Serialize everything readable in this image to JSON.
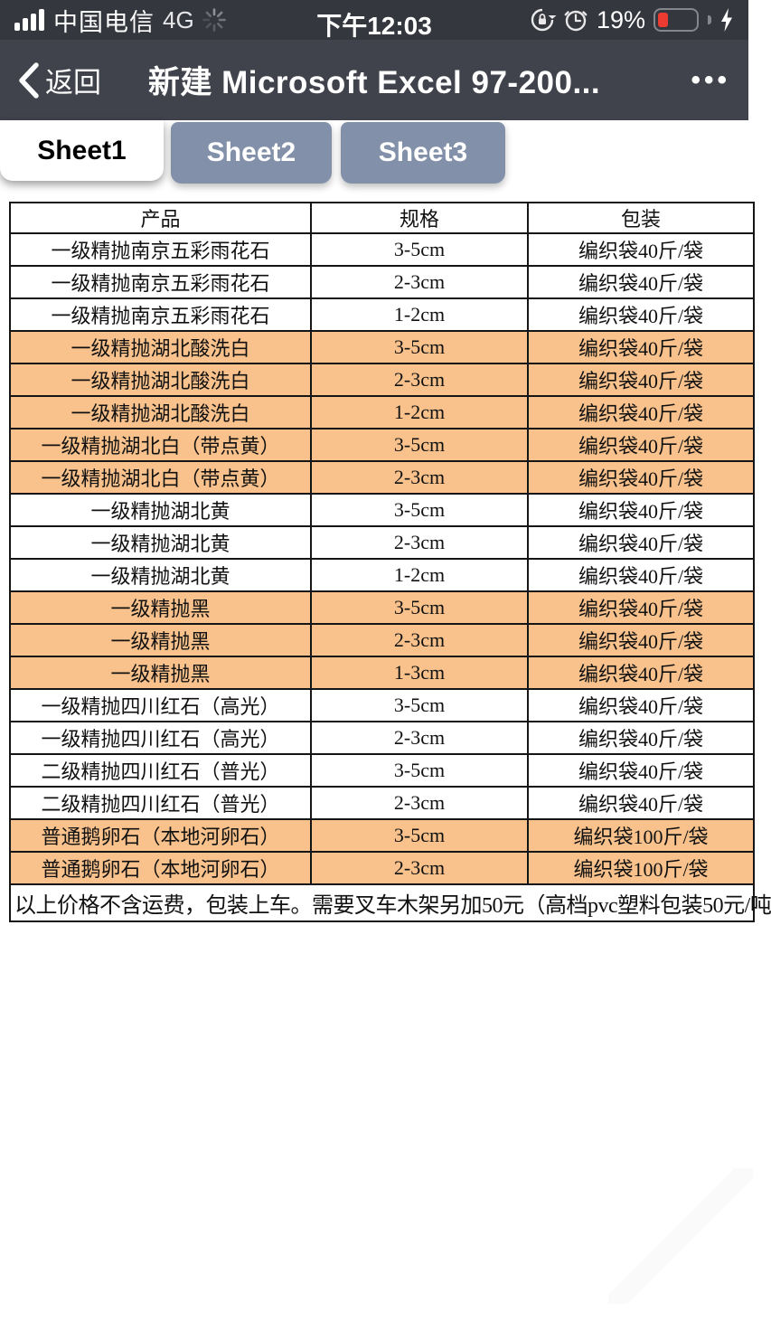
{
  "status_bar": {
    "carrier": "中国电信",
    "network": "4G",
    "time": "下午12:03",
    "battery_percent": "19%",
    "battery_color": "#ec3b30"
  },
  "nav_bar": {
    "back_label": "返回",
    "title": "新建 Microsoft Excel 97-200...",
    "more_label": "•••"
  },
  "sheet_tabs": [
    {
      "label": "Sheet1",
      "active": true
    },
    {
      "label": "Sheet2",
      "active": false
    },
    {
      "label": "Sheet3",
      "active": false
    }
  ],
  "table": {
    "headers": [
      "产品",
      "规格",
      "包装"
    ],
    "highlight_color": "#f9c28c",
    "rows": [
      {
        "product": "一级精抛南京五彩雨花石",
        "spec": "3-5cm",
        "pack": "编织袋40斤/袋",
        "highlight": false
      },
      {
        "product": "一级精抛南京五彩雨花石",
        "spec": "2-3cm",
        "pack": "编织袋40斤/袋",
        "highlight": false
      },
      {
        "product": "一级精抛南京五彩雨花石",
        "spec": "1-2cm",
        "pack": "编织袋40斤/袋",
        "highlight": false
      },
      {
        "product": "一级精抛湖北酸洗白",
        "spec": "3-5cm",
        "pack": "编织袋40斤/袋",
        "highlight": true
      },
      {
        "product": "一级精抛湖北酸洗白",
        "spec": "2-3cm",
        "pack": "编织袋40斤/袋",
        "highlight": true
      },
      {
        "product": "一级精抛湖北酸洗白",
        "spec": "1-2cm",
        "pack": "编织袋40斤/袋",
        "highlight": true
      },
      {
        "product": "一级精抛湖北白（带点黄）",
        "spec": "3-5cm",
        "pack": "编织袋40斤/袋",
        "highlight": true
      },
      {
        "product": "一级精抛湖北白（带点黄）",
        "spec": "2-3cm",
        "pack": "编织袋40斤/袋",
        "highlight": true
      },
      {
        "product": "一级精抛湖北黄",
        "spec": "3-5cm",
        "pack": "编织袋40斤/袋",
        "highlight": false
      },
      {
        "product": "一级精抛湖北黄",
        "spec": "2-3cm",
        "pack": "编织袋40斤/袋",
        "highlight": false
      },
      {
        "product": "一级精抛湖北黄",
        "spec": "1-2cm",
        "pack": "编织袋40斤/袋",
        "highlight": false
      },
      {
        "product": "一级精抛黑",
        "spec": "3-5cm",
        "pack": "编织袋40斤/袋",
        "highlight": true
      },
      {
        "product": "一级精抛黑",
        "spec": "2-3cm",
        "pack": "编织袋40斤/袋",
        "highlight": true
      },
      {
        "product": "一级精抛黑",
        "spec": "1-3cm",
        "pack": "编织袋40斤/袋",
        "highlight": true
      },
      {
        "product": "一级精抛四川红石（高光）",
        "spec": "3-5cm",
        "pack": "编织袋40斤/袋",
        "highlight": false
      },
      {
        "product": "一级精抛四川红石（高光）",
        "spec": "2-3cm",
        "pack": "编织袋40斤/袋",
        "highlight": false
      },
      {
        "product": "二级精抛四川红石（普光）",
        "spec": "3-5cm",
        "pack": "编织袋40斤/袋",
        "highlight": false
      },
      {
        "product": "二级精抛四川红石（普光）",
        "spec": "2-3cm",
        "pack": "编织袋40斤/袋",
        "highlight": false
      },
      {
        "product": "普通鹅卵石（本地河卵石）",
        "spec": "3-5cm",
        "pack": "编织袋100斤/袋",
        "highlight": true
      },
      {
        "product": "普通鹅卵石（本地河卵石）",
        "spec": "2-3cm",
        "pack": "编织袋100斤/袋",
        "highlight": true
      }
    ],
    "footer_note": "以上价格不含运费，包装上车。需要叉车木架另加50元（高档pvc塑料包装50元/吨"
  },
  "colors": {
    "status_bar_bg": "#35373e",
    "nav_bar_bg": "#40434c",
    "inactive_tab_bg": "#8290a9",
    "table_border": "#151515"
  }
}
